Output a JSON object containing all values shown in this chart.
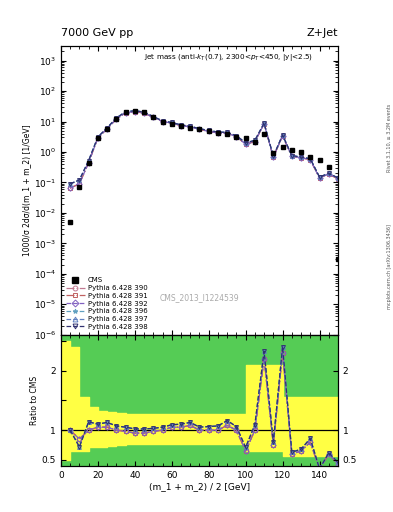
{
  "title_left": "7000 GeV pp",
  "title_right": "Z+Jet",
  "annotation": "Jet mass (anti-k_{T}(0.7), 2300<p_{T}<450, |y|<2.5)",
  "cms_label": "CMS_2013_I1224539",
  "right_label_top": "Rivet 3.1.10, ≥ 3.2M events",
  "right_label_bottom": "mcplots.cern.ch [arXiv:1306.3436]",
  "xlabel": "(m_1 + m_2) / 2 [GeV]",
  "ylabel_main": "1000/σ 2dσ/d(m_1 + m_2) [1/GeV]",
  "ylabel_ratio": "Ratio to CMS",
  "xlim": [
    0,
    150
  ],
  "ylim_main": [
    1e-06,
    3000.0
  ],
  "ylim_ratio": [
    0.4,
    2.6
  ],
  "x": [
    5,
    10,
    15,
    20,
    25,
    30,
    35,
    40,
    45,
    50,
    55,
    60,
    65,
    70,
    75,
    80,
    85,
    90,
    95,
    100,
    105,
    110,
    115,
    120,
    125,
    130,
    135,
    140,
    145,
    150
  ],
  "cms_data": [
    0.005,
    0.07,
    0.45,
    2.8,
    5.5,
    12.0,
    20.0,
    22.0,
    20.0,
    14.0,
    10.0,
    8.5,
    7.0,
    6.2,
    5.5,
    4.8,
    4.2,
    3.8,
    3.2,
    2.8,
    2.2,
    3.8,
    0.9,
    1.5,
    1.2,
    1.0,
    0.7,
    0.55,
    0.32,
    0.0003
  ],
  "pythia_390": [
    0.065,
    0.09,
    0.45,
    2.9,
    5.8,
    12.0,
    19.5,
    21.0,
    19.0,
    13.7,
    10.0,
    8.9,
    7.3,
    6.7,
    5.5,
    4.8,
    4.2,
    4.1,
    3.2,
    1.8,
    2.2,
    8.4,
    0.67,
    3.4,
    0.72,
    0.65,
    0.56,
    0.14,
    0.19,
    0.13
  ],
  "pythia_391": [
    0.065,
    0.09,
    0.45,
    2.9,
    5.8,
    12.0,
    19.5,
    21.0,
    19.0,
    13.7,
    10.0,
    8.9,
    7.3,
    6.7,
    5.5,
    4.8,
    4.2,
    4.1,
    3.2,
    1.8,
    2.2,
    8.4,
    0.67,
    3.4,
    0.72,
    0.65,
    0.56,
    0.14,
    0.19,
    0.13
  ],
  "pythia_392": [
    0.065,
    0.09,
    0.45,
    2.9,
    5.8,
    12.0,
    19.5,
    21.0,
    19.0,
    13.7,
    10.0,
    8.9,
    7.3,
    6.7,
    5.5,
    4.8,
    4.2,
    4.1,
    3.2,
    1.8,
    2.2,
    8.4,
    0.67,
    3.4,
    0.72,
    0.65,
    0.56,
    0.14,
    0.19,
    0.13
  ],
  "pythia_396": [
    0.09,
    0.12,
    0.52,
    3.1,
    6.2,
    13.0,
    21.0,
    22.5,
    20.5,
    14.5,
    10.5,
    9.3,
    7.7,
    7.0,
    5.8,
    5.1,
    4.5,
    4.4,
    3.4,
    2.0,
    2.4,
    8.8,
    0.72,
    3.6,
    0.76,
    0.68,
    0.6,
    0.15,
    0.2,
    0.14
  ],
  "pythia_397": [
    0.09,
    0.12,
    0.52,
    3.1,
    6.2,
    13.0,
    21.0,
    22.5,
    20.5,
    14.5,
    10.5,
    9.3,
    7.7,
    7.0,
    5.8,
    5.1,
    4.5,
    4.4,
    3.4,
    2.0,
    2.4,
    8.8,
    0.72,
    3.6,
    0.76,
    0.68,
    0.6,
    0.15,
    0.2,
    0.14
  ],
  "pythia_398": [
    0.09,
    0.12,
    0.52,
    3.1,
    6.2,
    13.0,
    21.0,
    22.5,
    20.5,
    14.5,
    10.5,
    9.3,
    7.7,
    7.0,
    5.8,
    5.1,
    4.5,
    4.4,
    3.4,
    2.0,
    2.4,
    8.8,
    0.72,
    3.6,
    0.76,
    0.68,
    0.6,
    0.15,
    0.2,
    0.14
  ],
  "ratio_cms_green_lo": [
    0.5,
    0.5,
    0.5,
    0.5,
    0.5,
    0.5,
    0.5,
    0.5,
    0.5,
    0.5,
    0.5,
    0.5,
    0.5,
    0.5,
    0.5,
    0.5
  ],
  "ratio_cms_green_hi": [
    2.5,
    2.5,
    2.5,
    2.5,
    2.5,
    2.5,
    2.5,
    2.5,
    2.5,
    2.5,
    2.5,
    2.5,
    2.5,
    2.5,
    2.5,
    2.5
  ],
  "ratio_390": [
    1.0,
    0.85,
    1.0,
    1.05,
    1.05,
    1.0,
    0.98,
    0.95,
    0.95,
    0.98,
    1.0,
    1.05,
    1.05,
    1.08,
    1.0,
    1.0,
    1.0,
    1.08,
    1.0,
    0.65,
    1.0,
    2.2,
    0.75,
    2.3,
    0.6,
    0.65,
    0.8,
    0.25,
    0.6,
    0.43
  ],
  "ratio_391": [
    1.0,
    0.85,
    1.0,
    1.05,
    1.05,
    1.0,
    0.98,
    0.95,
    0.95,
    0.98,
    1.0,
    1.05,
    1.05,
    1.08,
    1.0,
    1.0,
    1.0,
    1.08,
    1.0,
    0.65,
    1.0,
    2.2,
    0.75,
    2.3,
    0.6,
    0.65,
    0.8,
    0.25,
    0.6,
    0.43
  ],
  "ratio_392": [
    1.0,
    0.85,
    1.0,
    1.05,
    1.05,
    1.0,
    0.98,
    0.95,
    0.95,
    0.98,
    1.0,
    1.05,
    1.05,
    1.08,
    1.0,
    1.0,
    1.0,
    1.08,
    1.0,
    0.65,
    1.0,
    2.2,
    0.75,
    2.3,
    0.6,
    0.65,
    0.8,
    0.25,
    0.6,
    0.43
  ],
  "ratio_396": [
    1.0,
    0.72,
    1.14,
    1.1,
    1.13,
    1.07,
    1.05,
    1.02,
    1.02,
    1.03,
    1.05,
    1.09,
    1.1,
    1.13,
    1.05,
    1.06,
    1.07,
    1.16,
    1.06,
    0.71,
    1.09,
    2.32,
    0.8,
    2.4,
    0.63,
    0.68,
    0.86,
    0.27,
    0.62,
    0.46
  ],
  "ratio_397": [
    1.0,
    0.72,
    1.14,
    1.1,
    1.13,
    1.07,
    1.05,
    1.02,
    1.02,
    1.03,
    1.05,
    1.09,
    1.1,
    1.13,
    1.05,
    1.06,
    1.07,
    1.16,
    1.06,
    0.71,
    1.09,
    2.32,
    0.8,
    2.4,
    0.63,
    0.68,
    0.86,
    0.27,
    0.62,
    0.46
  ],
  "ratio_398": [
    1.0,
    0.72,
    1.14,
    1.1,
    1.13,
    1.07,
    1.05,
    1.02,
    1.02,
    1.03,
    1.05,
    1.09,
    1.1,
    1.13,
    1.05,
    1.06,
    1.07,
    1.16,
    1.06,
    0.71,
    1.09,
    2.32,
    0.8,
    2.4,
    0.63,
    0.68,
    0.86,
    0.27,
    0.62,
    0.46
  ],
  "yellow_band_edges": [
    0,
    5,
    10,
    15,
    20,
    25,
    30,
    35,
    40,
    45,
    50,
    55,
    60,
    65,
    70,
    75,
    80,
    85,
    90,
    95,
    100,
    105,
    110,
    115,
    120,
    125,
    130,
    135,
    140,
    145,
    150
  ],
  "yellow_band_lo": [
    0.5,
    0.65,
    0.65,
    0.72,
    0.72,
    0.74,
    0.75,
    0.76,
    0.76,
    0.77,
    0.77,
    0.77,
    0.77,
    0.77,
    0.77,
    0.77,
    0.77,
    0.77,
    0.77,
    0.77,
    0.65,
    0.65,
    0.65,
    0.65,
    0.57,
    0.57,
    0.57,
    0.57,
    0.57,
    0.57,
    0.57
  ],
  "yellow_band_hi": [
    2.5,
    2.4,
    1.55,
    1.38,
    1.32,
    1.3,
    1.28,
    1.27,
    1.27,
    1.27,
    1.27,
    1.27,
    1.27,
    1.27,
    1.27,
    1.27,
    1.27,
    1.27,
    1.27,
    1.27,
    2.1,
    2.1,
    2.1,
    2.1,
    1.55,
    1.55,
    1.55,
    1.55,
    1.55,
    1.55,
    1.55
  ],
  "color_390": "#c07890",
  "color_391": "#c06060",
  "color_392": "#8060c0",
  "color_396": "#60a0c0",
  "color_397": "#6080c0",
  "color_398": "#303070",
  "marker_390": "o",
  "marker_391": "s",
  "marker_392": "D",
  "marker_396": "*",
  "marker_397": "^",
  "marker_398": "v",
  "ls_390": "-.",
  "ls_391": "-.",
  "ls_392": "--",
  "ls_396": "--",
  "ls_397": "--",
  "ls_398": "--"
}
